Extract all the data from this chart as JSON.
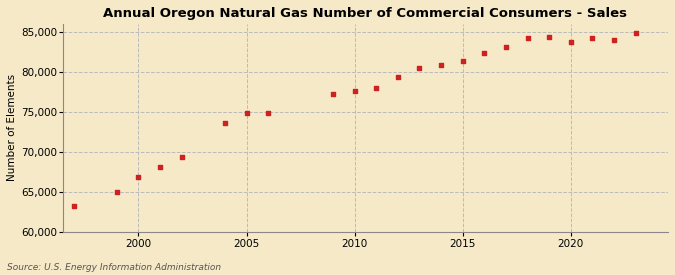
{
  "title": "Annual Oregon Natural Gas Number of Commercial Consumers - Sales",
  "ylabel": "Number of Elements",
  "source": "Source: U.S. Energy Information Administration",
  "background_color": "#f5e9c8",
  "marker_color": "#cc2222",
  "years": [
    1997,
    1999,
    2000,
    2001,
    2002,
    2004,
    2005,
    2006,
    2009,
    2010,
    2011,
    2012,
    2013,
    2014,
    2015,
    2016,
    2017,
    2018,
    2019,
    2020,
    2021,
    2022,
    2023
  ],
  "values": [
    63200,
    65000,
    66900,
    68100,
    69300,
    73600,
    74800,
    74800,
    77200,
    77600,
    78000,
    79300,
    80500,
    80900,
    81400,
    82300,
    83100,
    84200,
    84400,
    83700,
    84200,
    84000,
    84900
  ],
  "xlim": [
    1996.5,
    2024.5
  ],
  "ylim": [
    60000,
    86000
  ],
  "yticks": [
    60000,
    65000,
    70000,
    75000,
    80000,
    85000
  ],
  "xticks": [
    2000,
    2005,
    2010,
    2015,
    2020
  ]
}
